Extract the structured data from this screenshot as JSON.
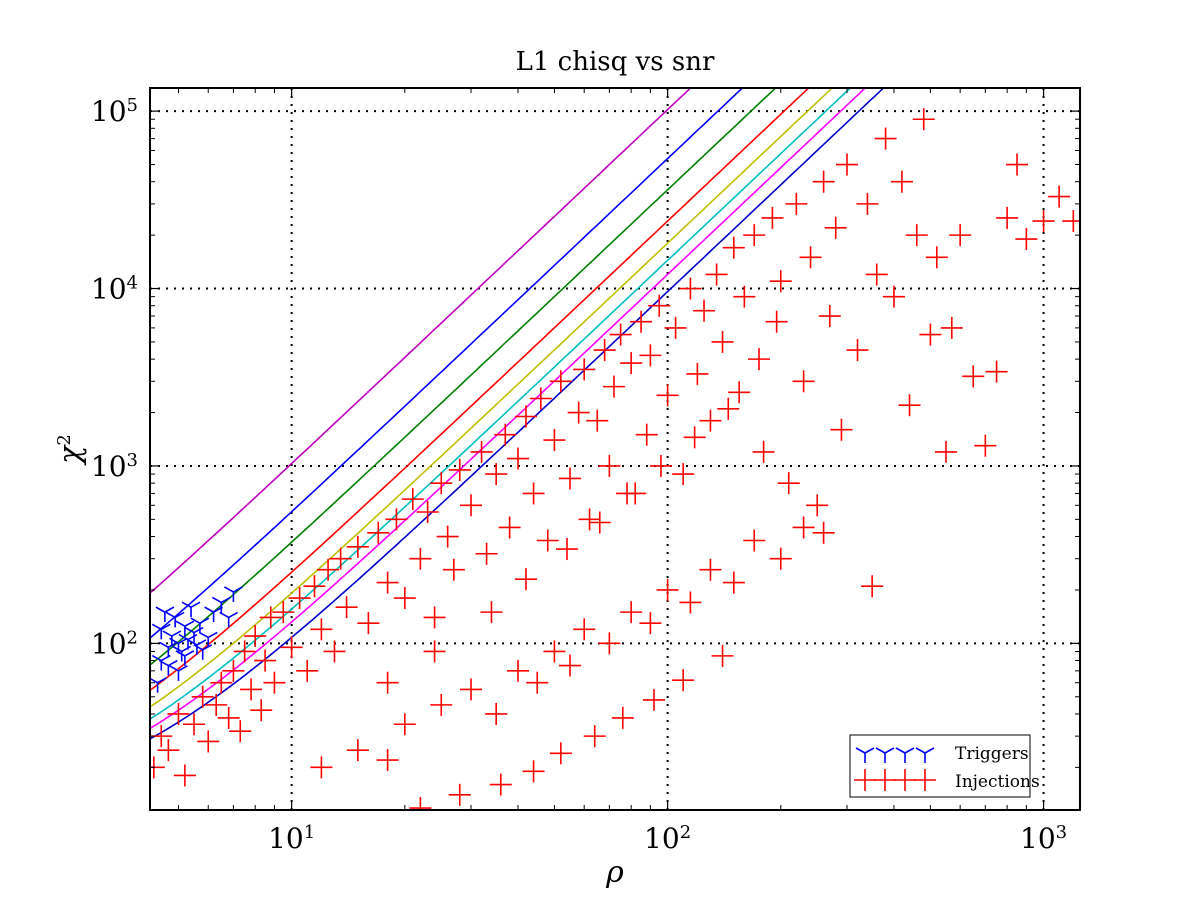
{
  "chart_data": {
    "type": "scatter",
    "title": "L1 chisq vs snr",
    "xlabel": "ρ",
    "ylabel": "χ",
    "ylabel_sup": "2",
    "xscale": "log",
    "yscale": "log",
    "xlim": [
      4.2,
      1250
    ],
    "ylim": [
      11.5,
      135000
    ],
    "grid": true,
    "legend_position": "lower-right",
    "x_ticks": [
      {
        "base": "10",
        "exp": "1",
        "value": 10
      },
      {
        "base": "10",
        "exp": "2",
        "value": 100
      },
      {
        "base": "10",
        "exp": "3",
        "value": 1000
      }
    ],
    "y_ticks": [
      {
        "base": "10",
        "exp": "2",
        "value": 100
      },
      {
        "base": "10",
        "exp": "3",
        "value": 1000
      },
      {
        "base": "10",
        "exp": "4",
        "value": 10000
      },
      {
        "base": "10",
        "exp": "5",
        "value": 100000
      }
    ],
    "series": [
      {
        "name": "Triggers",
        "marker": "tri_down",
        "color": "#0000ff",
        "points": [
          [
            4.4,
            60
          ],
          [
            4.5,
            120
          ],
          [
            4.6,
            150
          ],
          [
            4.7,
            95
          ],
          [
            4.8,
            110
          ],
          [
            4.9,
            140
          ],
          [
            5.0,
            100
          ],
          [
            5.1,
            90
          ],
          [
            5.2,
            125
          ],
          [
            5.3,
            105
          ],
          [
            5.4,
            160
          ],
          [
            5.5,
            115
          ],
          [
            5.6,
            98
          ],
          [
            5.7,
            130
          ],
          [
            5.8,
            92
          ],
          [
            6.0,
            108
          ],
          [
            6.2,
            150
          ],
          [
            6.5,
            170
          ],
          [
            6.8,
            140
          ],
          [
            7.0,
            195
          ],
          [
            4.5,
            80
          ],
          [
            4.7,
            75
          ],
          [
            5.0,
            70
          ],
          [
            5.2,
            85
          ]
        ]
      },
      {
        "name": "Injections",
        "marker": "plus",
        "color": "#ff0000",
        "points": [
          [
            4.3,
            20
          ],
          [
            4.5,
            30
          ],
          [
            4.7,
            25
          ],
          [
            5.0,
            40
          ],
          [
            5.2,
            18
          ],
          [
            5.5,
            35
          ],
          [
            5.8,
            50
          ],
          [
            6.0,
            28
          ],
          [
            6.3,
            45
          ],
          [
            6.5,
            60
          ],
          [
            6.8,
            38
          ],
          [
            7.0,
            70
          ],
          [
            7.3,
            32
          ],
          [
            7.5,
            90
          ],
          [
            7.8,
            55
          ],
          [
            8.0,
            110
          ],
          [
            8.3,
            42
          ],
          [
            8.5,
            80
          ],
          [
            8.8,
            140
          ],
          [
            9.0,
            60
          ],
          [
            9.5,
            150
          ],
          [
            10,
            95
          ],
          [
            10.5,
            180
          ],
          [
            11,
            70
          ],
          [
            11.5,
            210
          ],
          [
            12,
            120
          ],
          [
            12.5,
            260
          ],
          [
            13,
            90
          ],
          [
            13.5,
            300
          ],
          [
            14,
            160
          ],
          [
            15,
            350
          ],
          [
            16,
            130
          ],
          [
            17,
            420
          ],
          [
            18,
            220
          ],
          [
            19,
            500
          ],
          [
            20,
            180
          ],
          [
            21,
            650
          ],
          [
            22,
            300
          ],
          [
            23,
            550
          ],
          [
            24,
            140
          ],
          [
            25,
            800
          ],
          [
            26,
            400
          ],
          [
            27,
            260
          ],
          [
            28,
            950
          ],
          [
            30,
            600
          ],
          [
            32,
            1200
          ],
          [
            33,
            320
          ],
          [
            35,
            900
          ],
          [
            37,
            1500
          ],
          [
            38,
            450
          ],
          [
            40,
            1100
          ],
          [
            42,
            1900
          ],
          [
            44,
            700
          ],
          [
            46,
            2400
          ],
          [
            48,
            380
          ],
          [
            50,
            1400
          ],
          [
            52,
            3000
          ],
          [
            55,
            850
          ],
          [
            58,
            2000
          ],
          [
            60,
            3500
          ],
          [
            62,
            500
          ],
          [
            65,
            1800
          ],
          [
            68,
            4500
          ],
          [
            70,
            1000
          ],
          [
            72,
            2800
          ],
          [
            75,
            5500
          ],
          [
            78,
            700
          ],
          [
            80,
            3800
          ],
          [
            85,
            6500
          ],
          [
            88,
            1500
          ],
          [
            90,
            4200
          ],
          [
            95,
            8000
          ],
          [
            100,
            2500
          ],
          [
            105,
            6000
          ],
          [
            110,
            900
          ],
          [
            115,
            10000
          ],
          [
            120,
            3300
          ],
          [
            125,
            7500
          ],
          [
            130,
            1800
          ],
          [
            135,
            12000
          ],
          [
            140,
            5000
          ],
          [
            150,
            17000
          ],
          [
            155,
            2600
          ],
          [
            160,
            9000
          ],
          [
            170,
            20000
          ],
          [
            175,
            4000
          ],
          [
            180,
            1200
          ],
          [
            190,
            25000
          ],
          [
            195,
            6500
          ],
          [
            200,
            11000
          ],
          [
            210,
            800
          ],
          [
            220,
            30000
          ],
          [
            230,
            3000
          ],
          [
            240,
            15000
          ],
          [
            250,
            600
          ],
          [
            260,
            40000
          ],
          [
            270,
            7000
          ],
          [
            280,
            22000
          ],
          [
            290,
            1600
          ],
          [
            300,
            50000
          ],
          [
            320,
            4500
          ],
          [
            340,
            30000
          ],
          [
            350,
            210
          ],
          [
            360,
            12000
          ],
          [
            380,
            70000
          ],
          [
            400,
            9000
          ],
          [
            420,
            40000
          ],
          [
            440,
            2200
          ],
          [
            460,
            20000
          ],
          [
            480,
            90000
          ],
          [
            500,
            5500
          ],
          [
            520,
            15000
          ],
          [
            550,
            1200
          ],
          [
            570,
            6000
          ],
          [
            600,
            20000
          ],
          [
            650,
            3200
          ],
          [
            700,
            1300
          ],
          [
            750,
            3400
          ],
          [
            800,
            25000
          ],
          [
            850,
            50000
          ],
          [
            900,
            19000
          ],
          [
            1000,
            24000
          ],
          [
            1100,
            33000
          ],
          [
            1200,
            24000
          ],
          [
            12,
            20
          ],
          [
            15,
            25
          ],
          [
            18,
            22
          ],
          [
            20,
            35
          ],
          [
            25,
            45
          ],
          [
            30,
            55
          ],
          [
            35,
            40
          ],
          [
            40,
            70
          ],
          [
            45,
            60
          ],
          [
            50,
            90
          ],
          [
            55,
            75
          ],
          [
            60,
            120
          ],
          [
            70,
            100
          ],
          [
            80,
            150
          ],
          [
            90,
            130
          ],
          [
            100,
            200
          ],
          [
            115,
            170
          ],
          [
            130,
            260
          ],
          [
            150,
            220
          ],
          [
            170,
            380
          ],
          [
            200,
            300
          ],
          [
            230,
            450
          ],
          [
            260,
            420
          ],
          [
            22,
            11.8
          ],
          [
            28,
            14
          ],
          [
            36,
            16
          ],
          [
            44,
            19
          ],
          [
            52,
            24
          ],
          [
            64,
            30
          ],
          [
            76,
            38
          ],
          [
            92,
            48
          ],
          [
            110,
            62
          ],
          [
            140,
            85
          ],
          [
            18,
            60
          ],
          [
            24,
            90
          ],
          [
            34,
            150
          ],
          [
            42,
            230
          ],
          [
            54,
            340
          ],
          [
            66,
            480
          ],
          [
            82,
            700
          ],
          [
            96,
            1000
          ],
          [
            118,
            1450
          ],
          [
            145,
            2100
          ]
        ]
      },
      {
        "name": "",
        "color": "#bf00bf",
        "k": 0.85,
        "n": 12
      },
      {
        "name": "",
        "color": "#0000ff",
        "k": 0.45,
        "n": 12
      },
      {
        "name": "",
        "color": "#008000",
        "k": 0.3,
        "n": 12
      },
      {
        "name": "",
        "color": "#ff0000",
        "k": 0.2,
        "n": 12
      },
      {
        "name": "",
        "color": "#bfbf00",
        "k": 0.15,
        "n": 12
      },
      {
        "name": "",
        "color": "#00bfbf",
        "k": 0.12,
        "n": 12
      },
      {
        "name": "",
        "color": "#ff00ff",
        "k": 0.1,
        "n": 12
      },
      {
        "name": "",
        "color": "#0000cc",
        "k": 0.08,
        "n": 12
      }
    ]
  }
}
